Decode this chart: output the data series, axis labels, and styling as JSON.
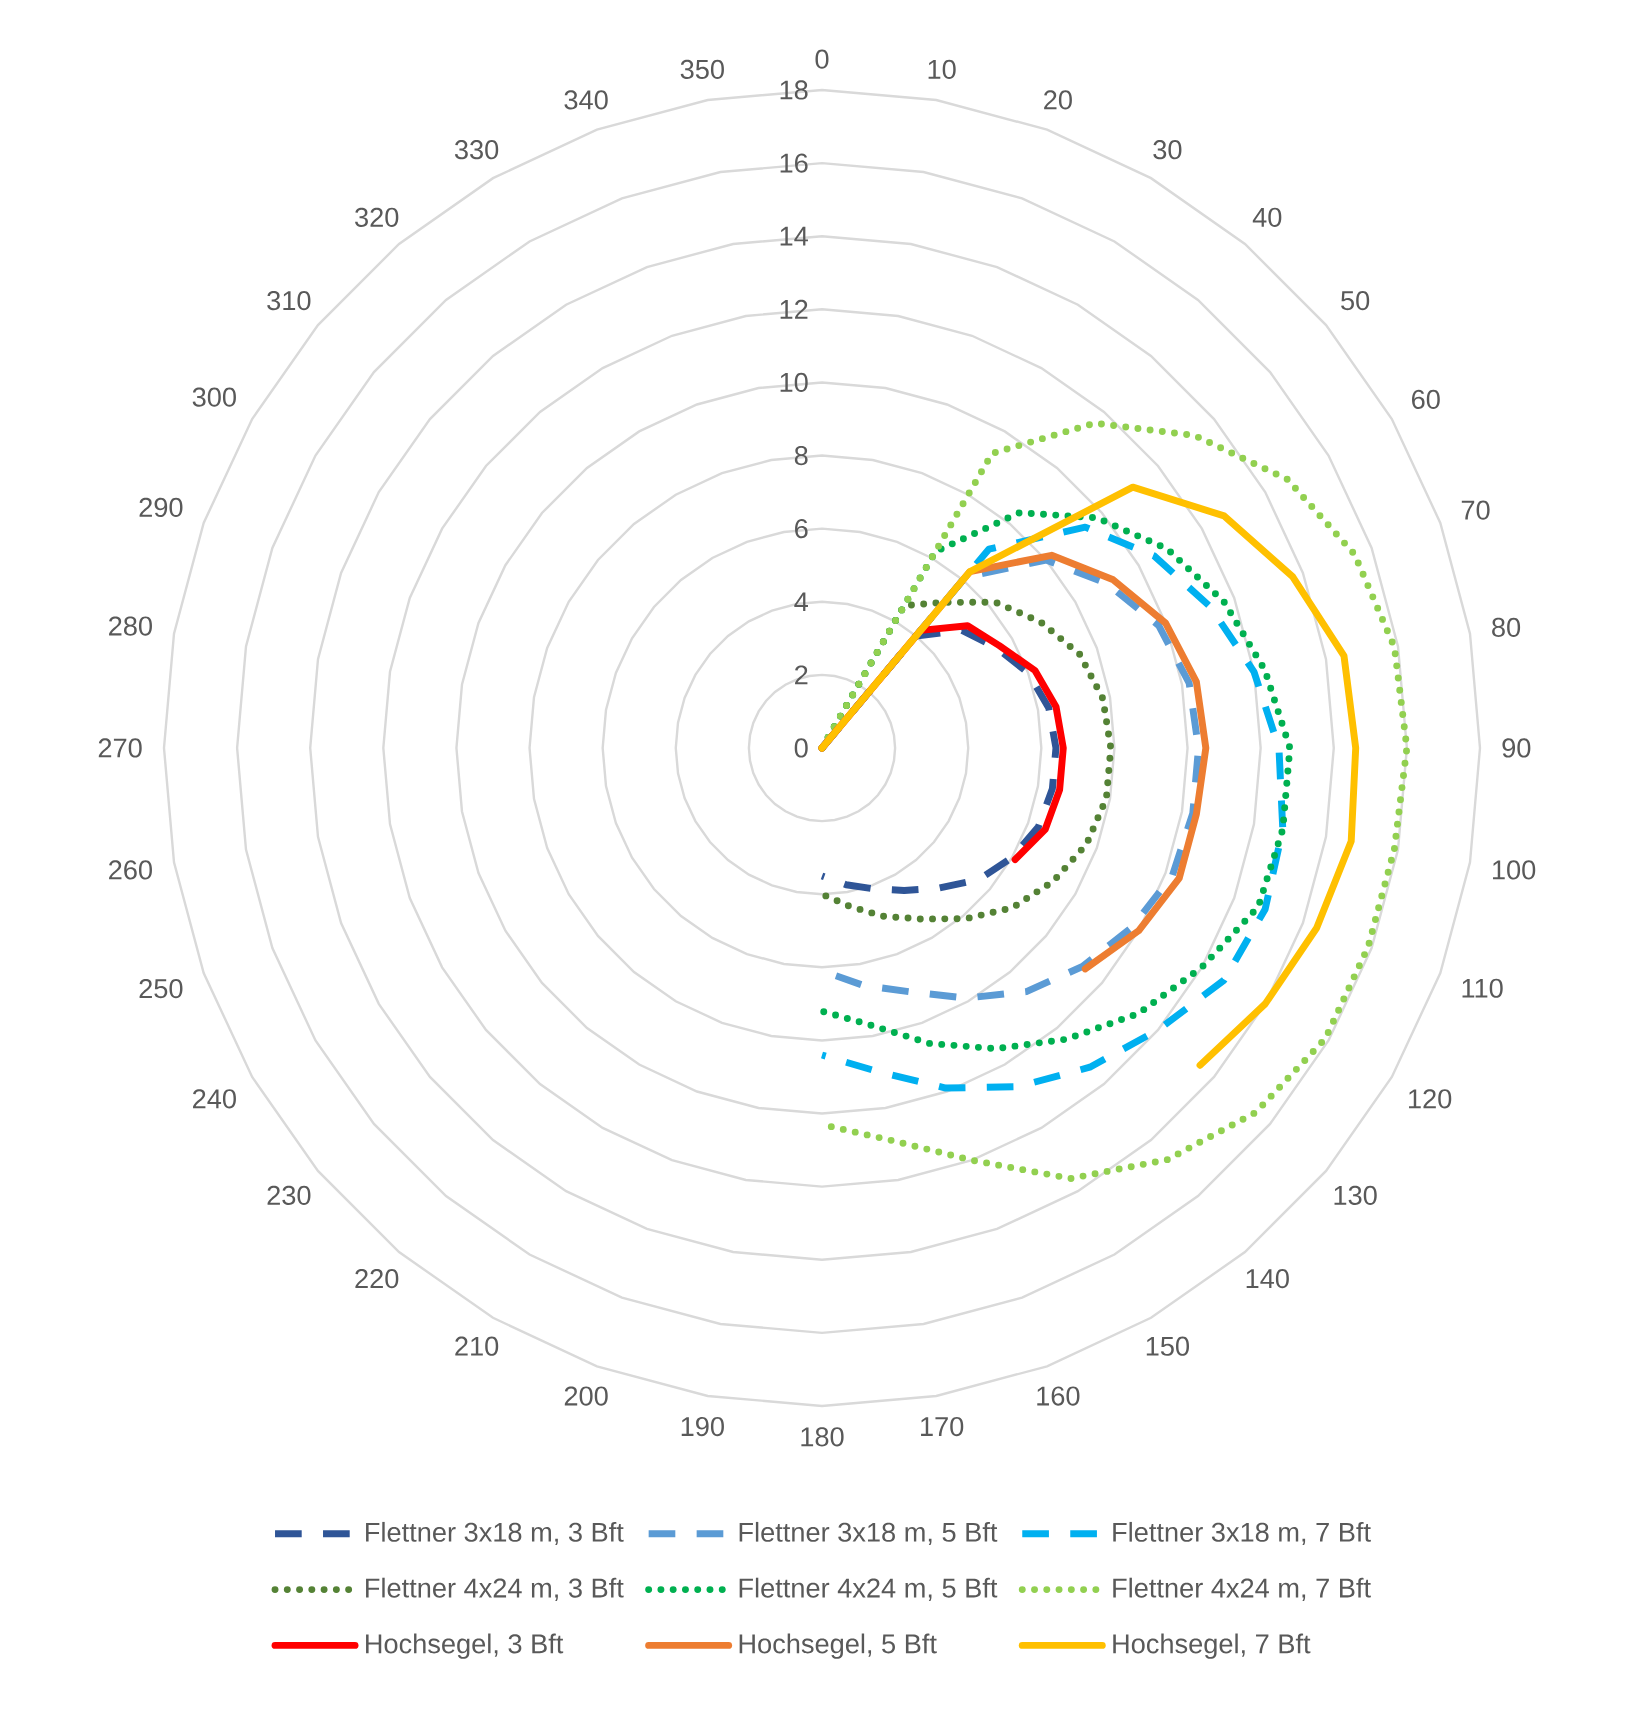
{
  "chart_data": {
    "type": "radar",
    "categories": [
      "0",
      "10",
      "20",
      "30",
      "40",
      "50",
      "60",
      "70",
      "80",
      "90",
      "100",
      "110",
      "120",
      "130",
      "140",
      "150",
      "160",
      "170",
      "180",
      "190",
      "200",
      "210",
      "220",
      "230",
      "240",
      "250",
      "260",
      "270",
      "280",
      "290",
      "300",
      "310",
      "320",
      "330",
      "340",
      "350"
    ],
    "ylim": [
      0,
      18
    ],
    "yticks": [
      0,
      2,
      4,
      6,
      8,
      10,
      12,
      14,
      16,
      18
    ],
    "grid": true,
    "legend": "bottom",
    "series": [
      {
        "name": "Flettner 3x18 m, 3 Bft",
        "color": "#2f5597",
        "line_style": "dashed",
        "values": [
          0,
          0,
          0,
          0,
          4.0,
          5.0,
          5.5,
          6.0,
          6.3,
          6.4,
          6.4,
          6.3,
          6.0,
          5.6,
          5.0,
          4.5,
          4.1,
          3.8,
          3.5,
          null,
          null,
          null,
          null,
          null,
          null,
          null,
          null,
          null,
          null,
          null,
          null,
          null,
          null,
          null,
          null,
          null
        ]
      },
      {
        "name": "Flettner 3x18 m, 5 Bft",
        "color": "#5b9bd5",
        "line_style": "dashed",
        "values": [
          0,
          0,
          0,
          0,
          6.1,
          8.0,
          9.0,
          9.8,
          10.2,
          10.3,
          10.3,
          10.2,
          9.8,
          9.3,
          8.7,
          7.9,
          7.1,
          6.6,
          6.1,
          null,
          null,
          null,
          null,
          null,
          null,
          null,
          null,
          null,
          null,
          null,
          null,
          null,
          null,
          null,
          null,
          null
        ]
      },
      {
        "name": "Flettner 3x18 m, 7 Bft",
        "color": "#00b0f0",
        "line_style": "dashed",
        "values": [
          0,
          0,
          0,
          0,
          7.1,
          9.4,
          10.5,
          11.3,
          12.0,
          12.5,
          12.8,
          12.9,
          12.7,
          12.0,
          11.4,
          10.7,
          9.9,
          9.0,
          8.4,
          null,
          null,
          null,
          null,
          null,
          null,
          null,
          null,
          null,
          null,
          null,
          null,
          null,
          null,
          null,
          null,
          null
        ]
      },
      {
        "name": "Flettner 4x24 m, 3 Bft",
        "color": "#548235",
        "line_style": "dotted",
        "values": [
          0,
          0,
          0,
          4.5,
          5.2,
          6.2,
          6.9,
          7.5,
          7.8,
          7.9,
          7.9,
          7.7,
          7.3,
          6.8,
          6.1,
          5.4,
          4.9,
          4.4,
          4.0,
          null,
          null,
          null,
          null,
          null,
          null,
          null,
          null,
          null,
          null,
          null,
          null,
          null,
          null,
          null,
          null,
          null
        ]
      },
      {
        "name": "Flettner 4x24 m, 5 Bft",
        "color": "#00b050",
        "line_style": "dotted",
        "values": [
          0,
          0,
          0,
          6.2,
          8.4,
          9.8,
          10.9,
          11.7,
          12.3,
          12.8,
          12.8,
          12.7,
          12.0,
          11.3,
          10.4,
          9.5,
          8.6,
          7.7,
          7.2,
          null,
          null,
          null,
          null,
          null,
          null,
          null,
          null,
          null,
          null,
          null,
          null,
          null,
          null,
          null,
          null,
          null
        ]
      },
      {
        "name": "Flettner 4x24 m, 7 Bft",
        "color": "#92d050",
        "line_style": "dotted",
        "values": [
          0,
          0,
          0,
          9.3,
          11.6,
          13.3,
          14.7,
          15.5,
          15.9,
          16.0,
          15.9,
          15.9,
          15.9,
          15.5,
          14.7,
          13.6,
          12.0,
          10.9,
          10.3,
          null,
          null,
          null,
          null,
          null,
          null,
          null,
          null,
          null,
          null,
          null,
          null,
          null,
          null,
          null,
          null,
          null
        ]
      },
      {
        "name": "Hochsegel, 3 Bft",
        "color": "#ff0000",
        "line_style": "solid",
        "values": [
          0,
          0,
          0,
          0,
          4.2,
          5.2,
          5.6,
          6.2,
          6.5,
          6.6,
          6.6,
          6.5,
          6.1,
          null,
          null,
          null,
          null,
          null,
          null,
          null,
          null,
          null,
          null,
          null,
          null,
          null,
          null,
          null,
          null,
          null,
          null,
          null,
          null,
          null,
          null,
          null
        ]
      },
      {
        "name": "Hochsegel, 5 Bft",
        "color": "#ed7d31",
        "line_style": "solid",
        "values": [
          0,
          0,
          0,
          0,
          6.3,
          8.2,
          9.2,
          10.0,
          10.4,
          10.5,
          10.4,
          10.4,
          10.0,
          9.4,
          null,
          null,
          null,
          null,
          null,
          null,
          null,
          null,
          null,
          null,
          null,
          null,
          null,
          null,
          null,
          null,
          null,
          null,
          null,
          null,
          null,
          null
        ]
      },
      {
        "name": "Hochsegel, 7 Bft",
        "color": "#ffc000",
        "line_style": "solid",
        "values": [
          0,
          0,
          0,
          0,
          6.3,
          11.1,
          12.7,
          13.7,
          14.5,
          14.6,
          14.7,
          14.4,
          14.0,
          13.5,
          null,
          null,
          null,
          null,
          null,
          null,
          null,
          null,
          null,
          null,
          null,
          null,
          null,
          null,
          null,
          null,
          null,
          null,
          null,
          null,
          null,
          null
        ]
      }
    ]
  }
}
